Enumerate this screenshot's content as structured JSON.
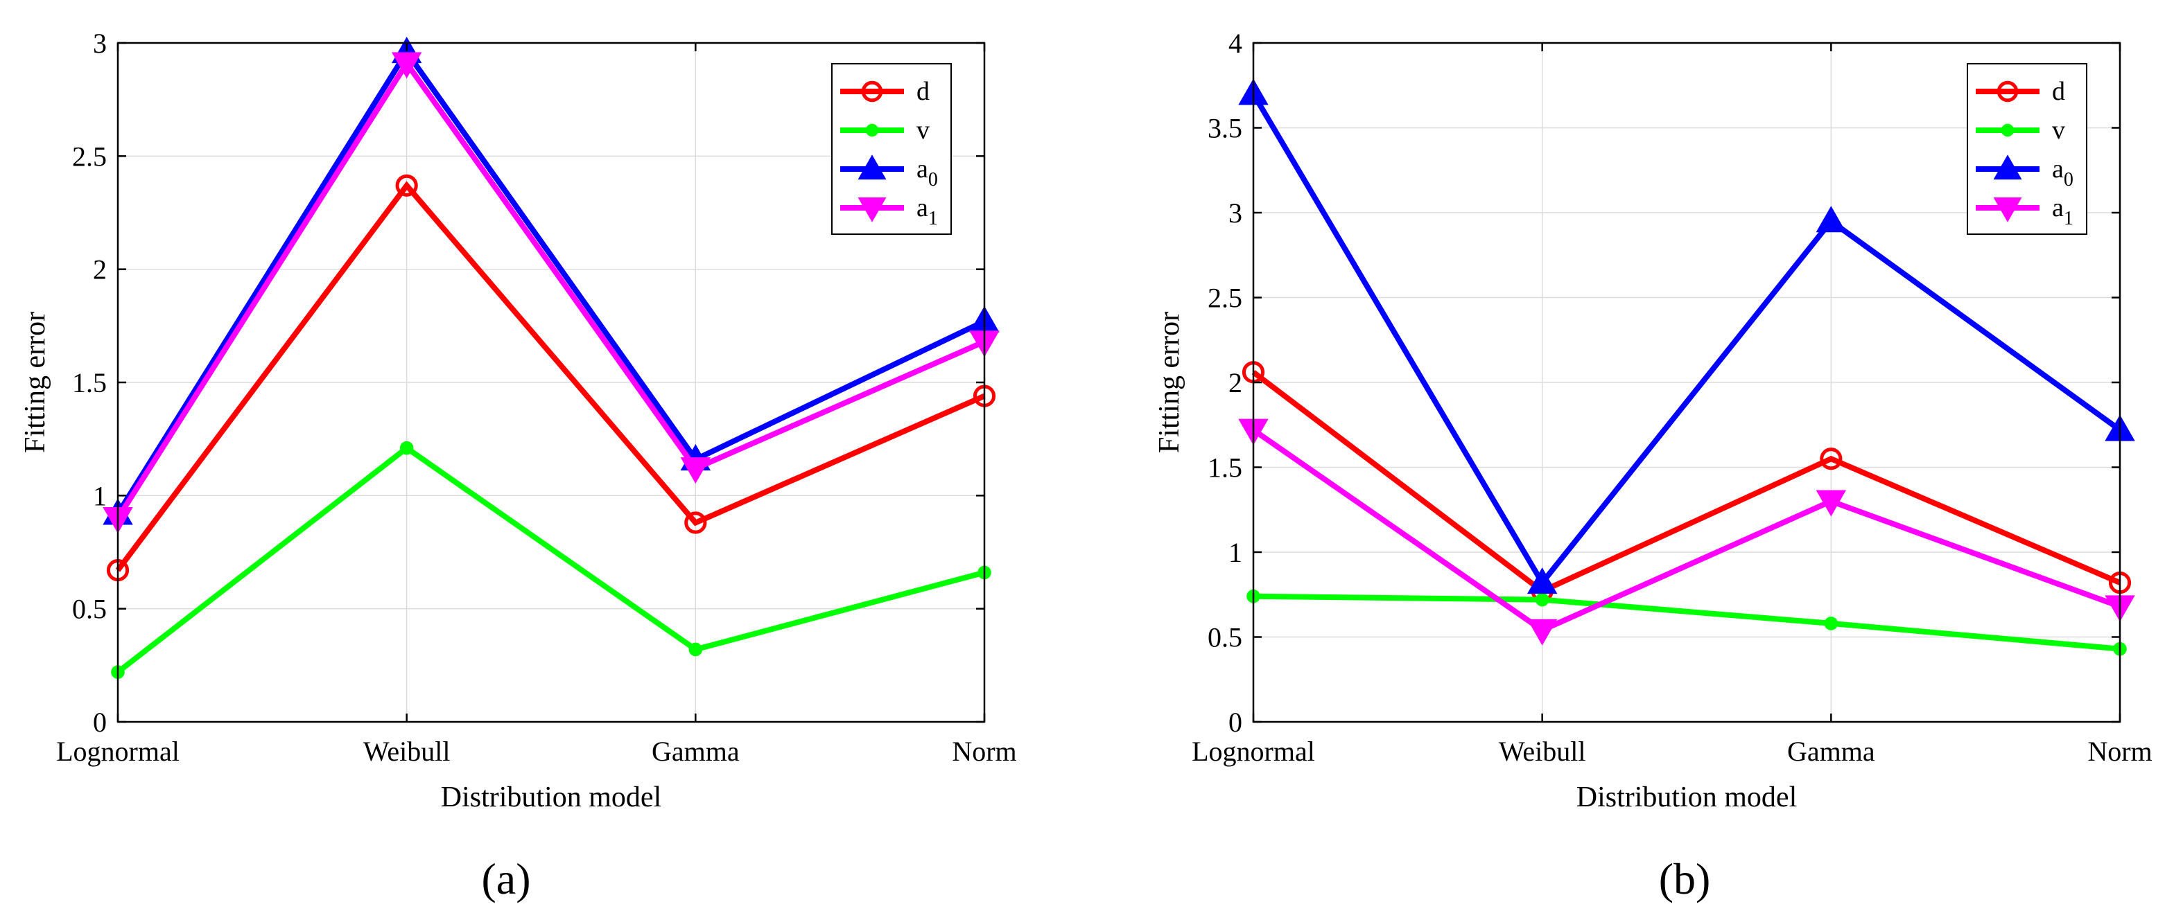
{
  "figure": {
    "panel_labels": [
      "(a)",
      "(b)"
    ]
  },
  "colors": {
    "d": "#ff0000",
    "v": "#00ff00",
    "a0": "#0000ff",
    "a1": "#ff00ff",
    "grid": "#dcdcdc",
    "axis": "#000000"
  },
  "chart_data": [
    {
      "type": "line",
      "panel": "(a)",
      "categories": [
        "Lognormal",
        "Weibull",
        "Gamma",
        "Norm"
      ],
      "xlabel": "Distribution model",
      "ylabel": "Fitting error",
      "ylim": [
        0,
        3
      ],
      "yticks": [
        0,
        0.5,
        1,
        1.5,
        2,
        2.5,
        3
      ],
      "ytick_labels": [
        "0",
        "0.5",
        "1",
        "1.5",
        "2",
        "2.5",
        "3"
      ],
      "grid": true,
      "legend_position": "top-right",
      "series": [
        {
          "key": "d",
          "name": "d",
          "sub": "",
          "marker": "circle-open",
          "values": [
            0.67,
            2.37,
            0.88,
            1.44
          ]
        },
        {
          "key": "v",
          "name": "v",
          "sub": "",
          "marker": "dot",
          "values": [
            0.22,
            1.21,
            0.32,
            0.66
          ]
        },
        {
          "key": "a0",
          "name": "a",
          "sub": "0",
          "marker": "triangle-up",
          "values": [
            0.92,
            2.96,
            1.16,
            1.77
          ]
        },
        {
          "key": "a1",
          "name": "a",
          "sub": "1",
          "marker": "triangle-down",
          "values": [
            0.9,
            2.91,
            1.12,
            1.68
          ]
        }
      ]
    },
    {
      "type": "line",
      "panel": "(b)",
      "categories": [
        "Lognormal",
        "Weibull",
        "Gamma",
        "Norm"
      ],
      "xlabel": "Distribution model",
      "ylabel": "Fitting error",
      "ylim": [
        0,
        4
      ],
      "yticks": [
        0,
        0.5,
        1,
        1.5,
        2,
        2.5,
        3,
        3.5,
        4
      ],
      "ytick_labels": [
        "0",
        "0.5",
        "1",
        "1.5",
        "2",
        "2.5",
        "3",
        "3.5",
        "4"
      ],
      "grid": true,
      "legend_position": "top-right",
      "series": [
        {
          "key": "d",
          "name": "d",
          "sub": "",
          "marker": "circle-open",
          "values": [
            2.06,
            0.77,
            1.55,
            0.82
          ]
        },
        {
          "key": "v",
          "name": "v",
          "sub": "",
          "marker": "dot",
          "values": [
            0.74,
            0.72,
            0.58,
            0.43
          ]
        },
        {
          "key": "a0",
          "name": "a",
          "sub": "0",
          "marker": "triangle-up",
          "values": [
            3.7,
            0.82,
            2.95,
            1.72
          ]
        },
        {
          "key": "a1",
          "name": "a",
          "sub": "1",
          "marker": "triangle-down",
          "values": [
            1.72,
            0.54,
            1.3,
            0.68
          ]
        }
      ]
    }
  ]
}
